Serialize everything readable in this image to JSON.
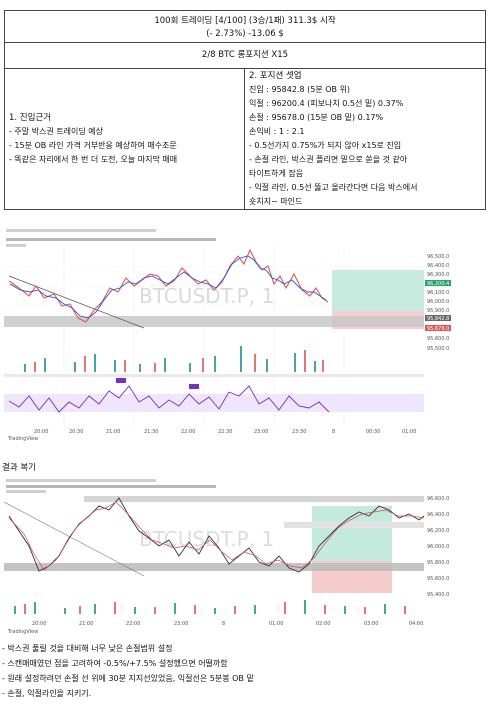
{
  "header": {
    "title": "100회 트레이딩 [4/100] (3승/1패) 311.3$ 시작",
    "subtitle": "(- 2.73%) -13.06 $"
  },
  "trade_line": "2/8 BTC 롱포지션 X15",
  "entry_basis": {
    "heading": "1. 진입근거",
    "items": [
      "- 주말 박스권 트레이딩 예상",
      "- 15분 OB 라인 가격 거부반응 예상하여 매수조문",
      "- 똑같은 자리에서 한 번 더 도전, 오늘 마지막 매매"
    ]
  },
  "position": {
    "heading": "2. 포지션 셋업",
    "lines": [
      "진입 : 95842.8 (5분 OB 위)",
      "익절 : 96200.4 (피보나치 0.5선 밑) 0.37%",
      "손절 : 95678.0 (15분 OB 밑) 0.17%",
      "손익비 : 1 : 2.1",
      "- 0.5선가지 0.75%가 되지 않아 x15로 진입",
      "- 손절 라인, 박스권 플리면 밑으로 쏟을 것 같아",
      "  타이트하게 잡음",
      "- 익절 라인, 0.5선 뚫고 올라간다면 다음 박스에서",
      "  숏치지~ 마인드"
    ]
  },
  "chart1": {
    "watermark": "BTCUSDT.P, 1",
    "tradingview": "TradingView",
    "time_labels": [
      "20:00",
      "20:30",
      "21:00",
      "21:30",
      "22:00",
      "22:30",
      "23:00",
      "23:30",
      "8",
      "00:30",
      "01:00"
    ],
    "price_labels": [
      "96,500.0",
      "96,400.0",
      "96,300.0",
      "96,200.4",
      "96,100.0",
      "96,000.0",
      "95,900.0",
      "95,842.8",
      "95,678.0",
      "95,600.0",
      "95,500.0"
    ]
  },
  "result_title": "결과 복기",
  "chart2": {
    "watermark": "BTCUSDT.P, 1",
    "tradingview": "TradingView",
    "time_labels": [
      "20:00",
      "21:00",
      "22:00",
      "23:00",
      "8",
      "01:00",
      "02:00",
      "03:00",
      "04:00"
    ],
    "price_labels": [
      "96,600.0",
      "96,400.0",
      "96,200.0",
      "96,000.0",
      "95,800.0",
      "95,600.0",
      "95,400.0"
    ]
  },
  "review": [
    "- 박스권 풀릴 것을 대비해 너무 낮은 손절범위 설정",
    "- 스캔매매였던 점을 고려하여 -0.5%/+7.5% 설정했으면 어떨까함",
    "- 원래 설정하려던 손절 선 위에 30분 지지선있었음, 익절선은 5분봉 OB 밑",
    "- 손절, 익절라인을 지키기."
  ]
}
